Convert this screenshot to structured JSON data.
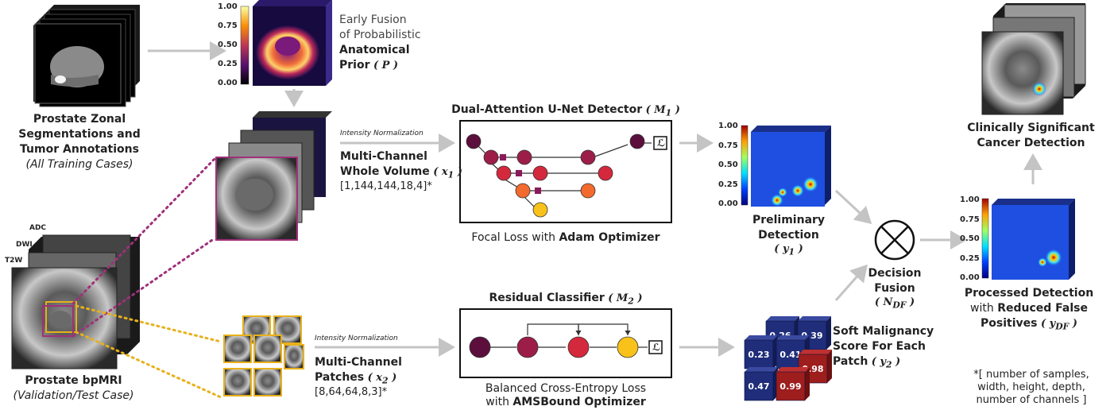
{
  "colors": {
    "arrow": "#c4c4c4",
    "magenta": "#a0307a",
    "gold": "#e8b01b",
    "node_dark": "#5c0f3c",
    "node_mid": "#9c1e48",
    "node_red": "#d4283c",
    "node_orange": "#f26a2e",
    "node_yellow": "#f8c21a",
    "patch_navy": "#1f2d7a",
    "patch_red": "#9e1d1d"
  },
  "icons": {
    "loss": "loss-symbol-L",
    "fusion": "circled-times-icon"
  },
  "left": {
    "seg_title_1": "Prostate Zonal",
    "seg_title_2": "Segmentations and",
    "seg_title_3": "Tumor Annotations",
    "seg_sub": "(All Training Cases)",
    "bp_title": "Prostate bpMRI",
    "bp_sub": "(Validation/Test Case)",
    "adc": "ADC",
    "dwi": "DWI",
    "t2w": "T2W"
  },
  "prior": {
    "ticks": [
      "1.00",
      "0.75",
      "0.50",
      "0.25",
      "0.00"
    ],
    "line1": "Early Fusion",
    "line2": "of Probabilistic",
    "line3": "Anatomical",
    "line4": "Prior",
    "sym": "( P )"
  },
  "volume": {
    "norm": "Intensity Normalization",
    "line1": "Multi-Channel",
    "line2": "Whole Volume",
    "sym": "( x",
    "sub": "1",
    "symclose": " )",
    "dims": "[1,144,144,18,4]*"
  },
  "patches": {
    "norm": "Intensity Normalization",
    "line1": "Multi-Channel",
    "line2": "Patches",
    "sym": "( x",
    "sub": "2",
    "symclose": " )",
    "dims": "[8,64,64,8,3]*"
  },
  "detector": {
    "title": "Dual-Attention U-Net Detector",
    "sym": "( M",
    "sub": "1",
    "symclose": " )",
    "loss_pre": "Focal Loss",
    "loss_mid": " with ",
    "loss_opt": "Adam Optimizer",
    "L": "ℒ"
  },
  "classifier": {
    "title": "Residual Classifier",
    "sym": "( M",
    "sub": "2",
    "symclose": " )",
    "loss1": "Balanced Cross-Entropy Loss",
    "loss2_pre": "with ",
    "loss2_opt": "AMSBound Optimizer",
    "L": "ℒ"
  },
  "prelim": {
    "ticks": [
      "1.00",
      "0.75",
      "0.50",
      "0.25",
      "0.00"
    ],
    "line1": "Preliminary",
    "line2": "Detection",
    "sym": "( y",
    "sub": "1",
    "symclose": " )"
  },
  "scores": {
    "values": [
      "0.26",
      "0.39",
      "0.23",
      "0.41",
      "0.98",
      "0.47",
      "0.99"
    ],
    "line1": "Soft Malignancy",
    "line2": "Score For Each",
    "line3": "Patch",
    "sym": "( y",
    "sub": "2",
    "symclose": " )"
  },
  "fusion": {
    "line1": "Decision",
    "line2": "Fusion",
    "sym": "( N",
    "sub": "DF",
    "symclose": " )"
  },
  "processed": {
    "ticks": [
      "1.00",
      "0.75",
      "0.50",
      "0.25",
      "0.00"
    ],
    "line1": "Processed Detection",
    "line2_pre": "with ",
    "line2_b": "Reduced False",
    "line3": "Positives",
    "sym": "( y",
    "sub": "DF",
    "symclose": " )"
  },
  "clinical": {
    "line1": "Clinically Significant",
    "line2": "Cancer Detection"
  },
  "footnote": {
    "line1": "*[  number of samples,",
    "line2": "width, height, depth,",
    "line3": "number of channels  ]"
  }
}
